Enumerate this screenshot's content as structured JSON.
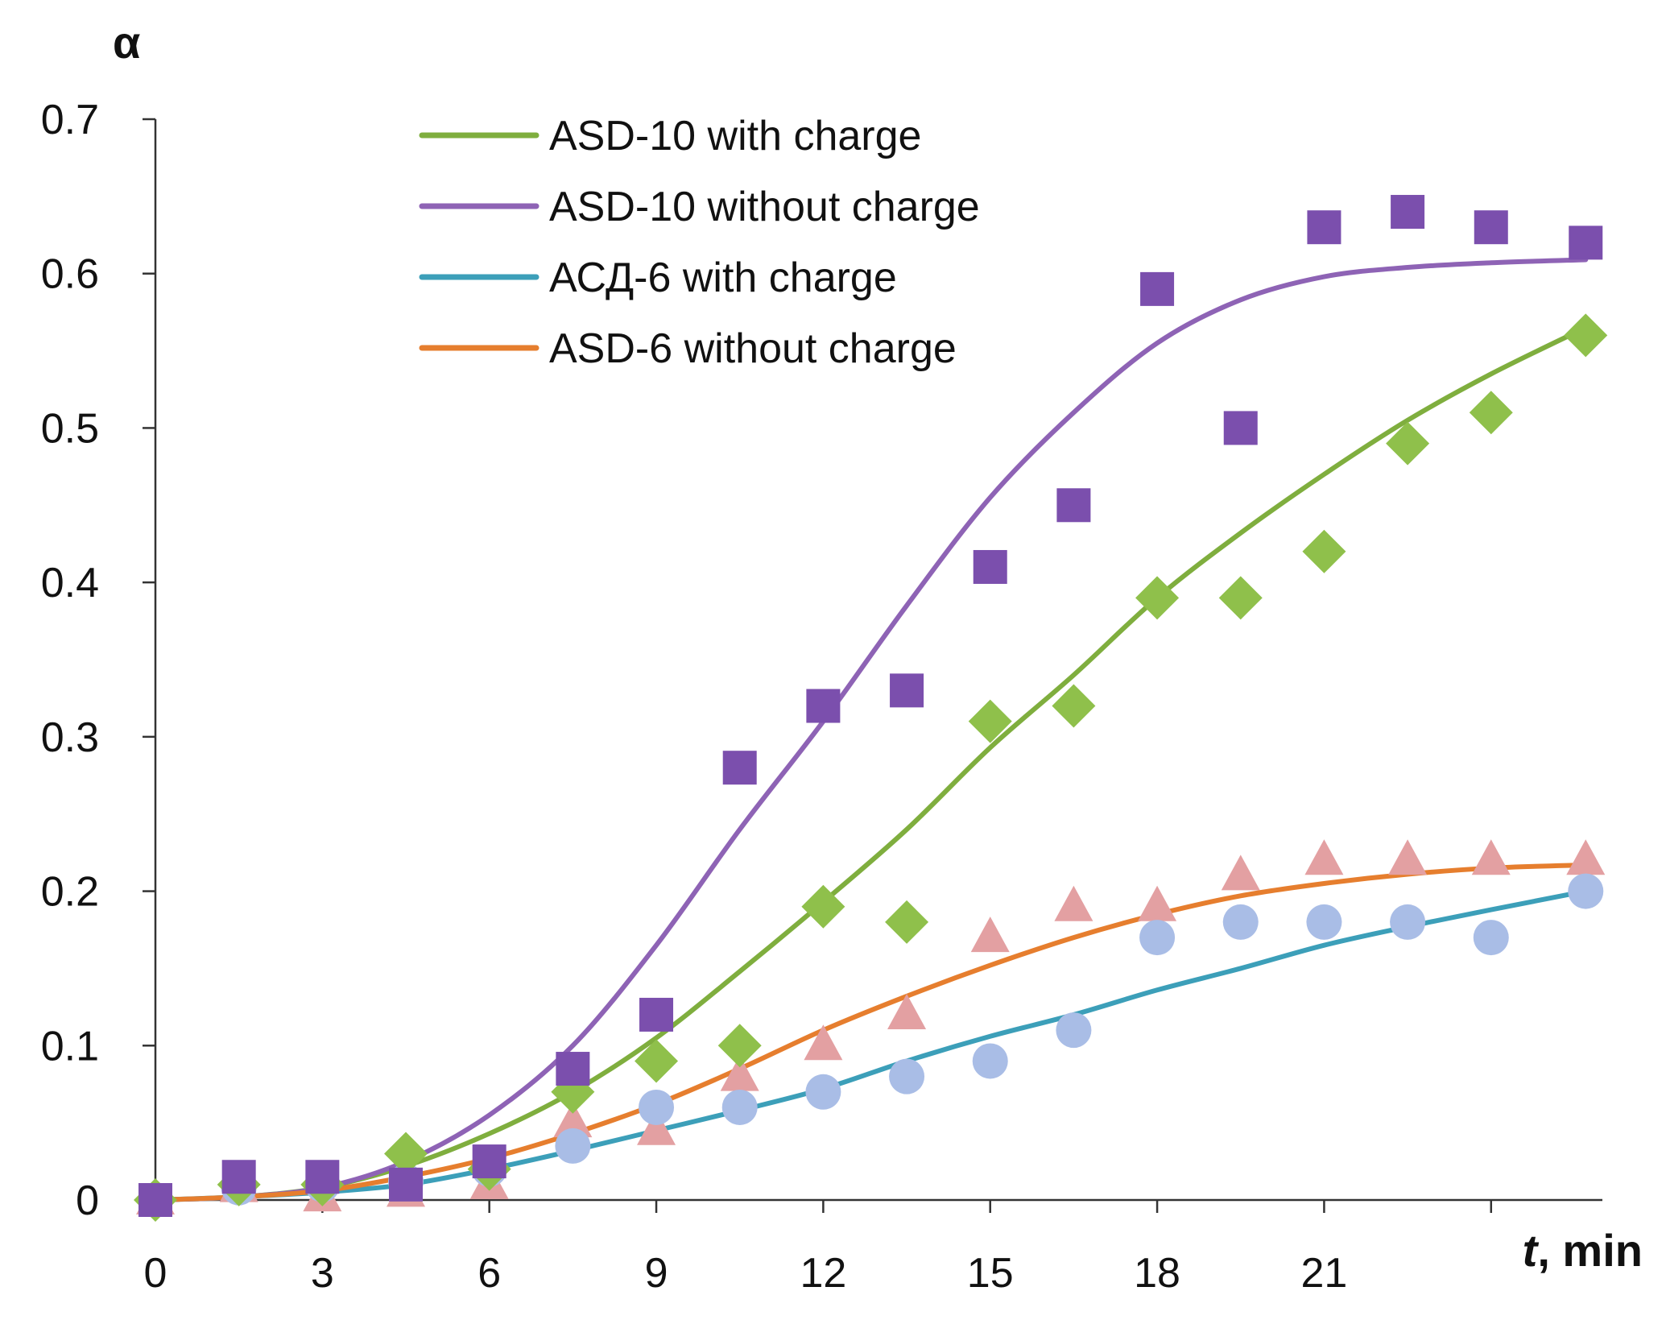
{
  "chart_data": {
    "type": "scatter",
    "ylabel": "α",
    "xlabel_var": "t",
    "xlabel_unit": ", min",
    "xlim": [
      0,
      26
    ],
    "ylim": [
      0,
      0.7
    ],
    "xticks": [
      0,
      3,
      6,
      9,
      12,
      15,
      18,
      21
    ],
    "yticks": [
      0,
      0.1,
      0.2,
      0.3,
      0.4,
      0.5,
      0.6,
      0.7
    ],
    "ytick_labels": [
      "0",
      "0.1",
      "0.2",
      "0.3",
      "0.4",
      "0.5",
      "0.6",
      "0.7"
    ],
    "legend_position": "top-left",
    "series": [
      {
        "name": "ASD-10 with charge",
        "color": "#7fae3e",
        "marker": "diamond",
        "x": [
          0,
          1.5,
          3,
          4.5,
          6,
          7.5,
          9,
          10.5,
          12,
          13.5,
          15,
          16.5,
          18,
          19.5,
          21,
          22.5,
          24,
          25.7
        ],
        "points": [
          0,
          0.01,
          0.01,
          0.03,
          0.02,
          0.07,
          0.09,
          0.1,
          0.19,
          0.18,
          0.31,
          0.32,
          0.39,
          0.39,
          0.42,
          0.49,
          0.51,
          0.56
        ],
        "curve": [
          0,
          0.002,
          0.008,
          0.022,
          0.043,
          0.07,
          0.105,
          0.148,
          0.193,
          0.24,
          0.293,
          0.34,
          0.39,
          0.432,
          0.47,
          0.505,
          0.535,
          0.565
        ]
      },
      {
        "name": "ASD-10 without charge",
        "color": "#8e63b5",
        "marker": "square",
        "x": [
          0,
          1.5,
          3,
          4.5,
          6,
          7.5,
          9,
          10.5,
          12,
          13.5,
          15,
          16.5,
          18,
          19.5,
          21,
          22.5,
          24,
          25.7
        ],
        "points": [
          0,
          0.015,
          0.015,
          0.01,
          0.025,
          0.085,
          0.12,
          0.28,
          0.32,
          0.33,
          0.41,
          0.45,
          0.59,
          0.5,
          0.63,
          0.64,
          0.63,
          0.62
        ],
        "curve": [
          0,
          0.002,
          0.008,
          0.025,
          0.055,
          0.1,
          0.165,
          0.24,
          0.31,
          0.385,
          0.455,
          0.51,
          0.555,
          0.583,
          0.598,
          0.604,
          0.607,
          0.609
        ]
      },
      {
        "name": "АСД-6 with charge",
        "color": "#3c9fb9",
        "marker": "circle",
        "x": [
          0,
          1.5,
          3,
          4.5,
          6,
          7.5,
          9,
          10.5,
          12,
          13.5,
          15,
          16.5,
          18,
          19.5,
          21,
          22.5,
          24,
          25.7
        ],
        "points": [
          0,
          0.008,
          0.01,
          0.012,
          0.02,
          0.035,
          0.06,
          0.06,
          0.07,
          0.08,
          0.09,
          0.11,
          0.17,
          0.18,
          0.18,
          0.18,
          0.17,
          0.2
        ],
        "curve": [
          0,
          0.002,
          0.005,
          0.01,
          0.02,
          0.032,
          0.045,
          0.058,
          0.072,
          0.09,
          0.106,
          0.12,
          0.136,
          0.15,
          0.165,
          0.177,
          0.188,
          0.2
        ]
      },
      {
        "name": "ASD-6 without charge",
        "color": "#e67e2e",
        "marker": "triangle",
        "x": [
          0,
          1.5,
          3,
          4.5,
          6,
          7.5,
          9,
          10.5,
          12,
          13.5,
          15,
          16.5,
          18,
          19.5,
          21,
          22.5,
          24,
          25.7
        ],
        "points": [
          0,
          0.008,
          0.002,
          0.005,
          0.01,
          0.05,
          0.045,
          0.08,
          0.1,
          0.12,
          0.17,
          0.19,
          0.19,
          0.21,
          0.22,
          0.22,
          0.22,
          0.22
        ],
        "curve": [
          0,
          0.002,
          0.006,
          0.015,
          0.027,
          0.043,
          0.062,
          0.085,
          0.11,
          0.132,
          0.152,
          0.17,
          0.185,
          0.197,
          0.205,
          0.211,
          0.215,
          0.217
        ]
      }
    ]
  }
}
